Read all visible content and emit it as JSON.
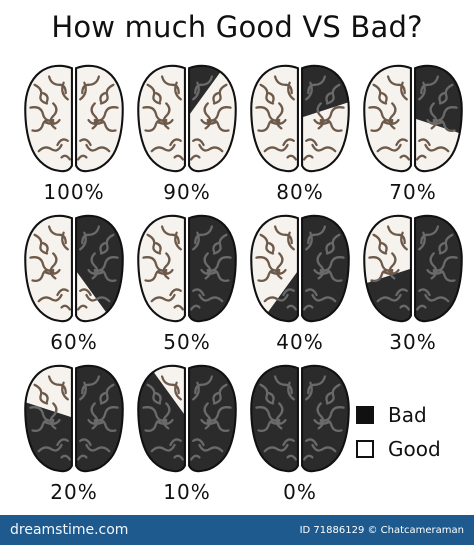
{
  "title": "How much Good VS Bad?",
  "colors": {
    "bad": "#2b2b2b",
    "good": "#f6f3ef",
    "groove_light": "#6e5a4a",
    "groove_dark": "#6a6a6a",
    "outline": "#111111"
  },
  "brains": [
    {
      "label": "100%",
      "good_fraction": 1.0
    },
    {
      "label": "90%",
      "good_fraction": 0.9
    },
    {
      "label": "80%",
      "good_fraction": 0.8
    },
    {
      "label": "70%",
      "good_fraction": 0.7
    },
    {
      "label": "60%",
      "good_fraction": 0.6
    },
    {
      "label": "50%",
      "good_fraction": 0.5
    },
    {
      "label": "40%",
      "good_fraction": 0.4
    },
    {
      "label": "30%",
      "good_fraction": 0.3
    },
    {
      "label": "20%",
      "good_fraction": 0.2
    },
    {
      "label": "10%",
      "good_fraction": 0.1
    },
    {
      "label": "0%",
      "good_fraction": 0.0
    }
  ],
  "legend": {
    "bad_label": "Bad",
    "good_label": "Good"
  },
  "footer": {
    "brand": "dreamstime.com",
    "info": "ID 71886129 © Chatcameraman"
  }
}
